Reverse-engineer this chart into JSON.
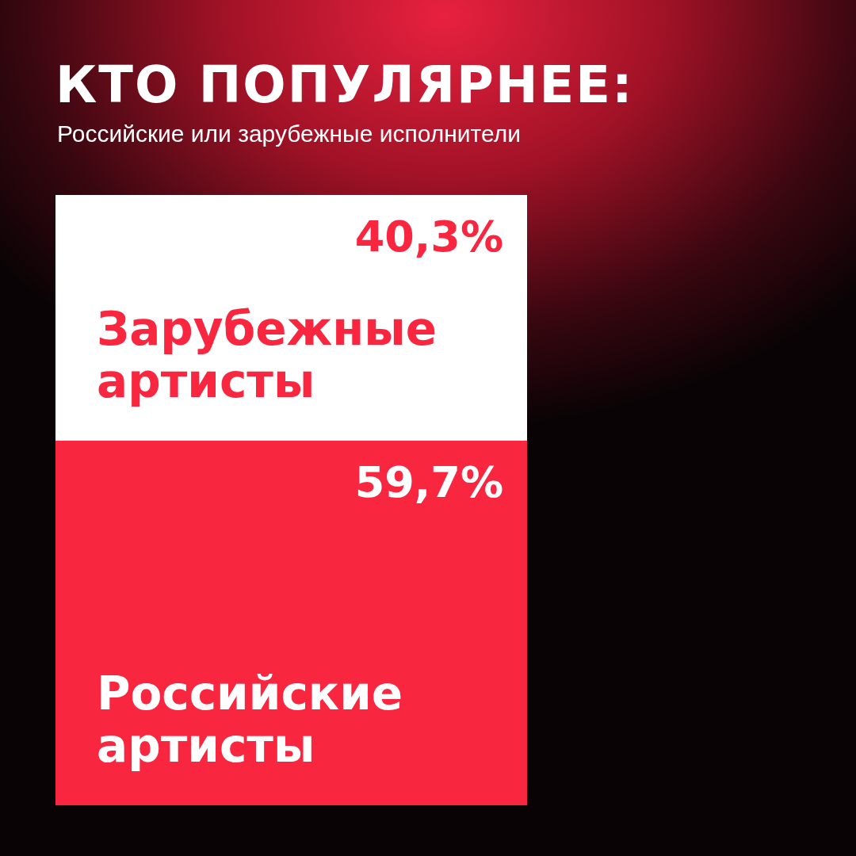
{
  "chart_data": {
    "type": "bar",
    "title": "КТО ПОПУЛЯРНЕЕ:",
    "subtitle": "Российские или зарубежные исполнители",
    "categories": [
      null
    ],
    "stacked": true,
    "tick_labels": false,
    "series": [
      {
        "name": "Российские артисты",
        "color": "#f8263f",
        "values": [
          59.7
        ],
        "value_labels": [
          "59,7%"
        ]
      },
      {
        "name": "Зарубежные артисты",
        "color": "#ffffff",
        "values": [
          40.3
        ],
        "value_labels": [
          "40,3%"
        ]
      }
    ]
  }
}
